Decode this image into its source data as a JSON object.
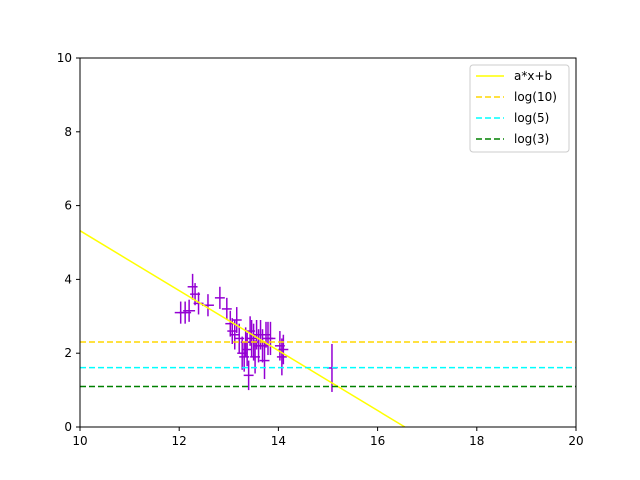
{
  "chart_data": {
    "type": "scatter",
    "title": "",
    "xlabel": "",
    "ylabel": "",
    "xlim": [
      10,
      20
    ],
    "ylim": [
      0,
      10
    ],
    "xticks": [
      10,
      12,
      14,
      16,
      18,
      20
    ],
    "yticks": [
      0,
      2,
      4,
      6,
      8,
      10
    ],
    "xtick_labels": [
      "10",
      "12",
      "14",
      "16",
      "18",
      "20"
    ],
    "ytick_labels": [
      "0",
      "2",
      "4",
      "6",
      "8",
      "10"
    ],
    "grid": false,
    "legend_position": "top-right",
    "points": {
      "color": "#9400D3",
      "x": [
        12.03,
        12.12,
        12.2,
        12.27,
        12.32,
        12.39,
        12.58,
        12.82,
        12.96,
        13.03,
        13.07,
        13.12,
        13.16,
        13.21,
        13.27,
        13.31,
        13.34,
        13.37,
        13.4,
        13.43,
        13.46,
        13.5,
        13.53,
        13.56,
        13.6,
        13.64,
        13.68,
        13.72,
        13.75,
        13.79,
        13.84,
        14.03,
        14.07,
        14.1,
        15.08
      ],
      "y": [
        3.1,
        3.1,
        3.15,
        3.8,
        3.6,
        3.35,
        3.3,
        3.5,
        3.2,
        2.8,
        2.6,
        2.5,
        2.9,
        2.4,
        2.0,
        1.9,
        2.3,
        2.1,
        1.4,
        2.6,
        2.4,
        2.3,
        1.9,
        2.5,
        2.2,
        2.5,
        2.2,
        1.8,
        2.5,
        2.4,
        2.4,
        2.2,
        1.9,
        2.1,
        1.6
      ],
      "x_err": [
        0.12,
        0.12,
        0.12,
        0.1,
        0.1,
        0.1,
        0.12,
        0.1,
        0.1,
        0.1,
        0.1,
        0.1,
        0.1,
        0.1,
        0.1,
        0.1,
        0.1,
        0.1,
        0.1,
        0.1,
        0.1,
        0.1,
        0.1,
        0.1,
        0.1,
        0.1,
        0.1,
        0.1,
        0.1,
        0.1,
        0.1,
        0.1,
        0.1,
        0.1,
        0.1
      ],
      "y_err": [
        0.3,
        0.3,
        0.3,
        0.35,
        0.3,
        0.3,
        0.3,
        0.3,
        0.3,
        0.35,
        0.35,
        0.4,
        0.35,
        0.4,
        0.45,
        0.4,
        0.4,
        0.45,
        0.4,
        0.4,
        0.5,
        0.5,
        0.45,
        0.4,
        0.45,
        0.4,
        0.45,
        0.5,
        0.35,
        0.45,
        0.45,
        0.4,
        0.5,
        0.4,
        0.65
      ]
    },
    "lines": [
      {
        "name": "a*x+b",
        "kind": "fit",
        "style": "solid",
        "color": "#FFFF00",
        "x": [
          10,
          16.55
        ],
        "y": [
          5.32,
          0
        ]
      },
      {
        "name": "log(10)",
        "kind": "hline",
        "style": "dashed",
        "color": "#FFD700",
        "y": 2.302585
      },
      {
        "name": "log(5)",
        "kind": "hline",
        "style": "dashed",
        "color": "#00FFFF",
        "y": 1.609438
      },
      {
        "name": "log(3)",
        "kind": "hline",
        "style": "dashed",
        "color": "#008000",
        "y": 1.098612
      }
    ]
  }
}
